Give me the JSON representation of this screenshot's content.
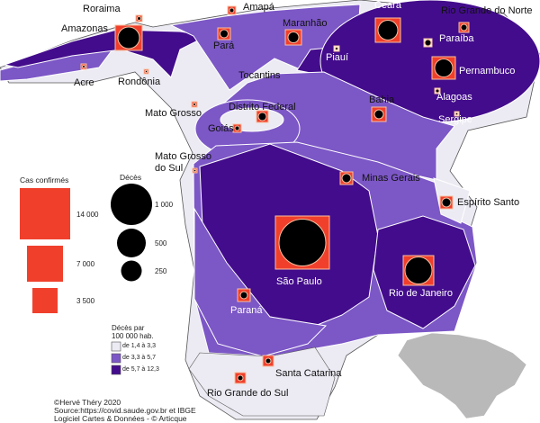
{
  "colors": {
    "low": "#ecebf3",
    "mid": "#7c57c6",
    "high": "#430c8c",
    "cases": "#f0402c",
    "deaths": "#000000",
    "inset": "#b9b9b9"
  },
  "states": {
    "roraima": "Roraima",
    "amapa": "Amapá",
    "amazonas": "Amazonas",
    "para": "Pará",
    "maranhao": "Maranhão",
    "ceara": "Ceará",
    "rgn": "Rio Grande do Norte",
    "paraiba": "Paraíba",
    "piaui": "Piauí",
    "pernambuco": "Pernambuco",
    "acre": "Acre",
    "rondonia": "Rondônia",
    "tocantins": "Tocantins",
    "alagoas": "Alagoas",
    "sergipe": "Sergipe",
    "bahia": "Bahia",
    "mato_grosso": "Mato Grosso",
    "df": "Distrito Federal",
    "goias": "Goiás",
    "ms_1": "Mato Grosso",
    "ms_2": "do Sul",
    "minas": "Minas Gerais",
    "es": "Espírito Santo",
    "sp": "São Paulo",
    "rj": "Rio de Janeiro",
    "parana": "Paraná",
    "sc": "Santa Catarina",
    "rgs": "Rio Grande do Sul"
  },
  "legend": {
    "cases_title": "Cas confirmés",
    "cases": [
      "14 000",
      "7 000",
      "3 500"
    ],
    "deaths_title": "Décès",
    "deaths": [
      "1 000",
      "500",
      "250"
    ],
    "rate_title_1": "Décès par",
    "rate_title_2": "100 000 hab.",
    "rates": [
      "de 1,4 à 3,3",
      "de 3,3 à 5,7",
      "de 5,7 à 12,3"
    ]
  },
  "credits": [
    "©Hervé Théry 2020",
    "Source:https://covid.saude.gov.br et IBGE",
    "Logiciel Cartes & Données - © Articque"
  ]
}
